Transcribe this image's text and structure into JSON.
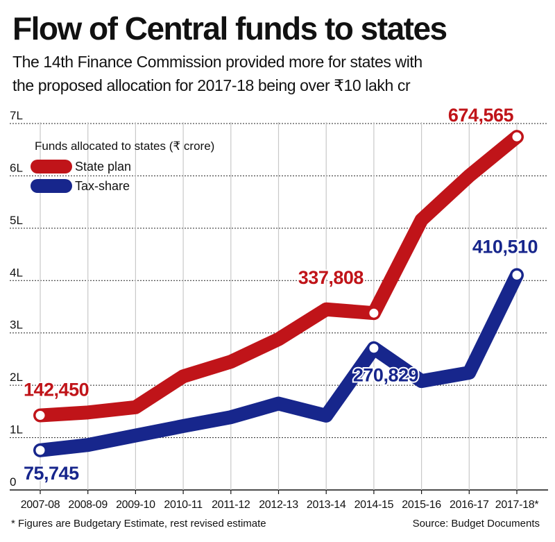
{
  "title": "Flow of Central funds to states",
  "subtitle_line1": "The 14th Finance Commission provided more for states with",
  "subtitle_line2": "the proposed allocation for 2017-18 being over ₹10 lakh cr",
  "footnote": "* Figures are Budgetary Estimate, rest revised estimate",
  "source": "Source: Budget Documents",
  "colors": {
    "state_plan": "#c01419",
    "tax_share": "#17268c",
    "grid": "#cccccc",
    "text": "#111111"
  },
  "chart_data": {
    "type": "line",
    "categories": [
      "2007-08",
      "2008-09",
      "2009-10",
      "2010-11",
      "2011-12",
      "2012-13",
      "2013-14",
      "2014-15",
      "2015-16",
      "2016-17",
      "2017-18*"
    ],
    "ylim": [
      0,
      700000
    ],
    "yticks": [
      0,
      100000,
      200000,
      300000,
      400000,
      500000,
      600000,
      700000
    ],
    "ytick_labels": [
      "0",
      "1L",
      "2L",
      "3L",
      "4L",
      "5L",
      "6L",
      "7L"
    ],
    "legend_title": "Funds allocated to states (₹ crore)",
    "legend_position": "top-left",
    "grid": true,
    "series": [
      {
        "name": "State plan",
        "color": "#c01419",
        "values": [
          142450,
          148000,
          158000,
          217000,
          245000,
          288000,
          345000,
          337808,
          516000,
          600000,
          674565
        ],
        "labels": [
          {
            "index": 0,
            "text": "142,450"
          },
          {
            "index": 7,
            "text": "337,808"
          },
          {
            "index": 10,
            "text": "674,565"
          }
        ]
      },
      {
        "name": "Tax-share",
        "color": "#17268c",
        "values": [
          75745,
          86000,
          104000,
          122000,
          139000,
          165000,
          142000,
          270829,
          208000,
          224000,
          410510
        ],
        "labels": [
          {
            "index": 0,
            "text": "75,745"
          },
          {
            "index": 7,
            "text": "270,829"
          },
          {
            "index": 10,
            "text": "410,510"
          }
        ]
      }
    ]
  }
}
